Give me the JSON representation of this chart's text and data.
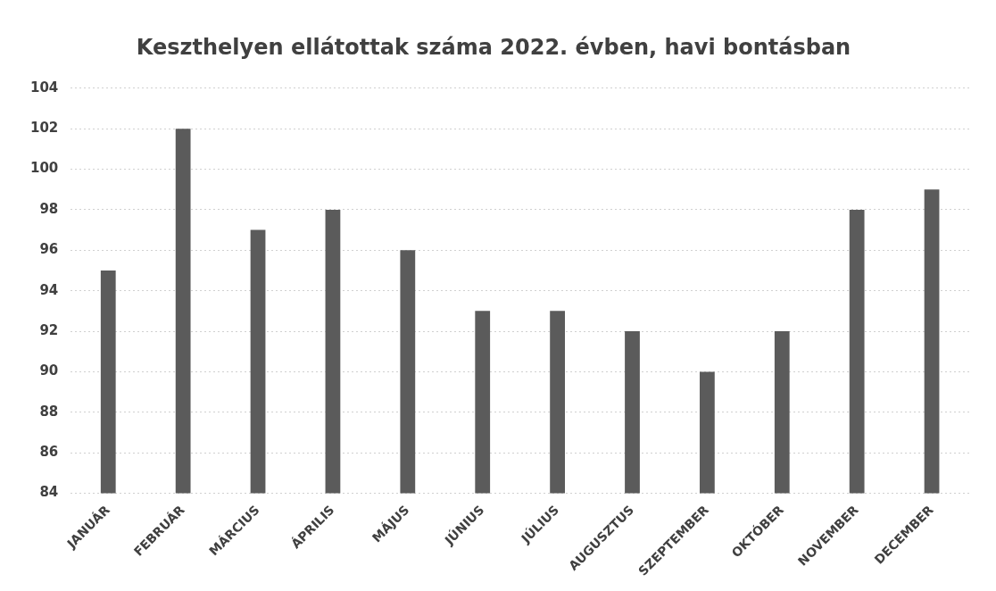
{
  "chart_data": {
    "type": "bar",
    "title": "Keszthelyen ellátottak száma 2022. évben, havi bontásban",
    "categories": [
      "JANUÁR",
      "FEBRUÁR",
      "MÁRCIUS",
      "ÁPRILIS",
      "MÁJUS",
      "JÚNIUS",
      "JÚLIUS",
      "AUGUSZTUS",
      "SZEPTEMBER",
      "OKTÓBER",
      "NOVEMBER",
      "DECEMBER"
    ],
    "values": [
      95,
      102,
      97,
      98,
      96,
      93,
      93,
      92,
      90,
      92,
      98,
      99
    ],
    "color": "#5b5b5b",
    "ylim": [
      84,
      104
    ],
    "yticks": [
      84,
      86,
      88,
      90,
      92,
      94,
      96,
      98,
      100,
      102,
      104
    ],
    "grid": "y"
  }
}
